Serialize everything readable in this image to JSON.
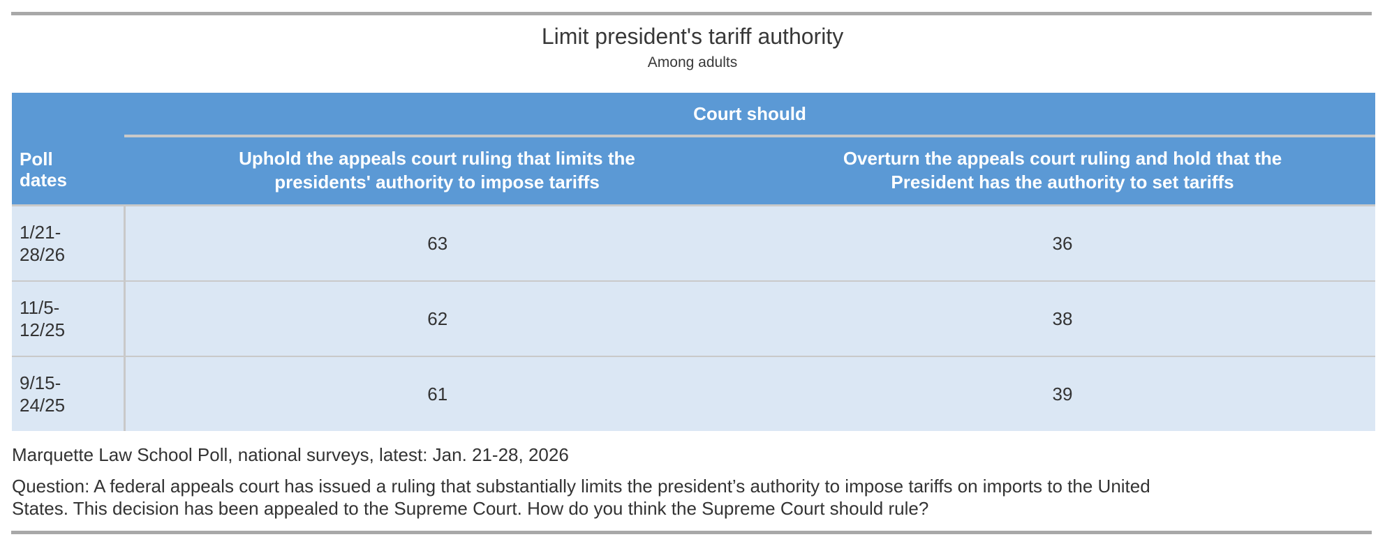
{
  "title": "Limit president's tariff authority",
  "subtitle": "Among adults",
  "table": {
    "group_header": "Court should",
    "headers": {
      "dates": "Poll\ndates",
      "uphold": "Uphold the appeals court ruling that limits the\npresidents' authority to impose tariffs",
      "overturn": "Overturn the appeals court ruling and hold that the\nPresident has the authority to set tariffs"
    },
    "rows": [
      {
        "dates": "1/21-\n28/26",
        "uphold": "63",
        "overturn": "36"
      },
      {
        "dates": "11/5-\n12/25",
        "uphold": "62",
        "overturn": "38"
      },
      {
        "dates": "9/15-\n24/25",
        "uphold": "61",
        "overturn": "39"
      }
    ]
  },
  "source": "Marquette Law School Poll, national surveys, latest: Jan. 21-28, 2026",
  "question": "Question: A federal appeals court has issued a ruling that substantially limits the president’s authority to impose tariffs on imports to the United\nStates. This decision has been appealed to the Supreme Court. How do you think the Supreme Court should rule?",
  "colors": {
    "header_blue": "#5b99d5",
    "row_light_blue": "#dbe7f4",
    "divider_gray": "#c9c9c9",
    "bar_gray": "#a8a8a8",
    "text": "#333333"
  },
  "chart_data": {
    "type": "table",
    "title": "Limit president's tariff authority",
    "subtitle": "Among adults",
    "group_header": "Court should",
    "columns": [
      "Poll dates",
      "Uphold the appeals court ruling that limits the presidents' authority to impose tariffs",
      "Overturn the appeals court ruling and hold that the President has the authority to set tariffs"
    ],
    "rows": [
      {
        "poll_dates": "1/21-28/26",
        "uphold": 63,
        "overturn": 36
      },
      {
        "poll_dates": "11/5-12/25",
        "uphold": 62,
        "overturn": 38
      },
      {
        "poll_dates": "9/15-24/25",
        "uphold": 61,
        "overturn": 39
      }
    ],
    "source": "Marquette Law School Poll, national surveys, latest: Jan. 21-28, 2026",
    "question": "Question: A federal appeals court has issued a ruling that substantially limits the president’s authority to impose tariffs on imports to the United States. This decision has been appealed to the Supreme Court. How do you think the Supreme Court should rule?"
  }
}
